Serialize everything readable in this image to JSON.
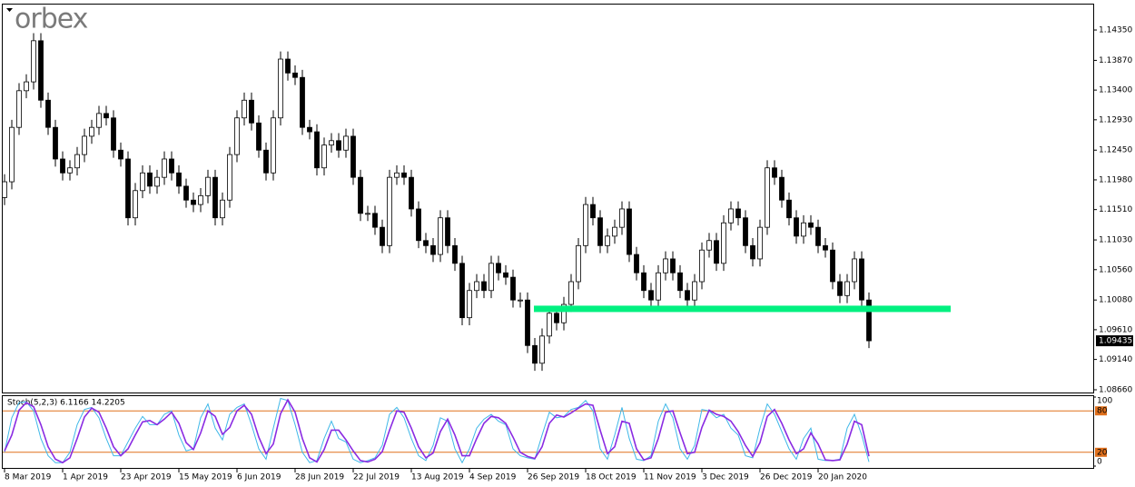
{
  "logo": "orbex",
  "chart_data": [
    {
      "type": "candlestick",
      "categories": [
        "8 Mar 2019",
        null,
        null,
        null,
        null,
        null,
        null,
        null,
        "1 Apr 2019",
        null,
        null,
        null,
        null,
        null,
        null,
        null,
        "23 Apr 2019",
        null,
        null,
        null,
        null,
        null,
        null,
        null,
        "15 May 2019",
        null,
        null,
        null,
        null,
        null,
        null,
        null,
        "6 Jun 2019",
        null,
        null,
        null,
        null,
        null,
        null,
        null,
        "28 Jun 2019",
        null,
        null,
        null,
        null,
        null,
        null,
        null,
        "22 Jul 2019",
        null,
        null,
        null,
        null,
        null,
        null,
        null,
        "13 Aug 2019",
        null,
        null,
        null,
        null,
        null,
        null,
        null,
        "4 Sep 2019",
        null,
        null,
        null,
        null,
        null,
        null,
        null,
        "26 Sep 2019",
        null,
        null,
        null,
        null,
        null,
        null,
        null,
        "18 Oct 2019",
        null,
        null,
        null,
        null,
        null,
        null,
        null,
        "11 Nov 2019",
        null,
        null,
        null,
        null,
        null,
        null,
        null,
        "3 Dec 2019",
        null,
        null,
        null,
        null,
        null,
        null,
        null,
        "26 Dec 2019",
        null,
        null,
        null,
        null,
        null,
        null,
        null,
        "20 Jan 2020",
        null,
        null,
        null,
        null,
        null,
        null,
        null
      ],
      "open": [
        1.117,
        1.1195,
        1.1281,
        1.1339,
        1.1353,
        1.1418,
        1.1324,
        1.1281,
        1.1231,
        1.1209,
        1.1217,
        1.1238,
        1.1267,
        1.1281,
        1.1303,
        1.1296,
        1.1245,
        1.1231,
        1.1138,
        1.1181,
        1.1209,
        1.1188,
        1.1202,
        1.1231,
        1.1209,
        1.1188,
        1.1166,
        1.1159,
        1.1173,
        1.1202,
        1.1138,
        1.1166,
        1.1238,
        1.1296,
        1.1324,
        1.1288,
        1.1245,
        1.1209,
        1.1296,
        1.1389,
        1.1367,
        1.136,
        1.1281,
        1.1274,
        1.1217,
        1.1253,
        1.126,
        1.1245,
        1.1267,
        1.1202,
        1.1145,
        1.1145,
        1.1123,
        1.1094,
        1.1202,
        1.1209,
        1.1202,
        1.1152,
        1.1102,
        1.1094,
        1.108,
        1.1138,
        1.1094,
        1.1066,
        1.098,
        1.1023,
        1.1037,
        1.1023,
        1.1066,
        1.1051,
        1.1044,
        1.1008,
        1.1008,
        1.0936,
        1.0908,
        1.0951,
        1.0987,
        1.0972,
        1.1001,
        1.1037,
        1.1094,
        1.1159,
        1.1138,
        1.1094,
        1.1109,
        1.1123,
        1.1152,
        1.108,
        1.1051,
        1.1023,
        1.1008,
        1.1051,
        1.1073,
        1.1051,
        1.1023,
        1.1008,
        1.1037,
        1.1087,
        1.1102,
        1.1066,
        1.113,
        1.1152,
        1.1138,
        1.1094,
        1.1073,
        1.1123,
        1.1217,
        1.1202,
        1.1166,
        1.1138,
        1.1109,
        1.113,
        1.1123,
        1.1094,
        1.1087,
        1.1037,
        1.1015,
        1.1037,
        1.1073,
        1.1008
      ],
      "high": [
        1.1207,
        1.1293,
        1.1351,
        1.1365,
        1.143,
        1.143,
        1.1336,
        1.1293,
        1.1243,
        1.1229,
        1.125,
        1.1279,
        1.1293,
        1.1315,
        1.1315,
        1.1308,
        1.1257,
        1.1243,
        1.1193,
        1.1221,
        1.1221,
        1.1214,
        1.1243,
        1.1243,
        1.1221,
        1.12,
        1.1178,
        1.1185,
        1.1214,
        1.1214,
        1.1178,
        1.125,
        1.1308,
        1.1336,
        1.1336,
        1.13,
        1.1257,
        1.1308,
        1.1401,
        1.1401,
        1.1379,
        1.1372,
        1.1293,
        1.1286,
        1.1265,
        1.1272,
        1.1272,
        1.1279,
        1.1279,
        1.1214,
        1.1157,
        1.1157,
        1.1135,
        1.1214,
        1.1221,
        1.1221,
        1.1214,
        1.1164,
        1.1114,
        1.1106,
        1.115,
        1.115,
        1.1106,
        1.1078,
        1.1035,
        1.1049,
        1.1049,
        1.1078,
        1.1078,
        1.1063,
        1.1056,
        1.102,
        1.102,
        1.0948,
        1.0963,
        1.0999,
        1.0999,
        1.1013,
        1.1049,
        1.1106,
        1.1171,
        1.1171,
        1.115,
        1.1121,
        1.1135,
        1.1164,
        1.1164,
        1.1092,
        1.1063,
        1.1035,
        1.1063,
        1.1085,
        1.1085,
        1.1063,
        1.1035,
        1.1049,
        1.1099,
        1.1114,
        1.1114,
        1.1142,
        1.1164,
        1.1164,
        1.115,
        1.1106,
        1.1135,
        1.1229,
        1.1229,
        1.1214,
        1.1178,
        1.115,
        1.1142,
        1.1142,
        1.1135,
        1.1106,
        1.1099,
        1.1049,
        1.1049,
        1.1085,
        1.1085,
        1.102
      ],
      "low": [
        1.1158,
        1.1183,
        1.1269,
        1.1327,
        1.1341,
        1.1312,
        1.1269,
        1.1219,
        1.1197,
        1.1197,
        1.1205,
        1.1226,
        1.1255,
        1.1269,
        1.1284,
        1.1233,
        1.1219,
        1.1126,
        1.1126,
        1.1169,
        1.1176,
        1.1176,
        1.119,
        1.1197,
        1.1176,
        1.1154,
        1.1147,
        1.1147,
        1.1161,
        1.1126,
        1.1126,
        1.1154,
        1.1226,
        1.1284,
        1.1276,
        1.1233,
        1.1197,
        1.1197,
        1.1284,
        1.1355,
        1.1348,
        1.1269,
        1.1262,
        1.1205,
        1.1205,
        1.1241,
        1.1233,
        1.1233,
        1.119,
        1.1133,
        1.1133,
        1.1111,
        1.1082,
        1.1082,
        1.119,
        1.119,
        1.114,
        1.109,
        1.1082,
        1.1068,
        1.1068,
        1.1082,
        1.1054,
        1.0968,
        1.0968,
        1.1011,
        1.1011,
        1.1011,
        1.1039,
        1.1032,
        1.0996,
        1.0996,
        1.0924,
        1.0896,
        1.0896,
        1.0939,
        1.096,
        1.096,
        1.0989,
        1.1025,
        1.1082,
        1.1126,
        1.1082,
        1.1082,
        1.1097,
        1.1111,
        1.1068,
        1.1039,
        1.1011,
        1.0996,
        1.0996,
        1.1039,
        1.1039,
        1.1011,
        1.0996,
        1.0996,
        1.1025,
        1.1075,
        1.1054,
        1.1054,
        1.1118,
        1.1126,
        1.1082,
        1.1061,
        1.1061,
        1.1111,
        1.119,
        1.1154,
        1.1126,
        1.1097,
        1.1097,
        1.1111,
        1.1082,
        1.1075,
        1.1025,
        1.1003,
        1.1003,
        1.1025,
        1.0996,
        1.0932
      ],
      "close": [
        1.1195,
        1.1281,
        1.1339,
        1.1353,
        1.1418,
        1.1324,
        1.1281,
        1.1231,
        1.1209,
        1.1217,
        1.1238,
        1.1267,
        1.1281,
        1.1303,
        1.1296,
        1.1245,
        1.1231,
        1.1138,
        1.1181,
        1.1209,
        1.1188,
        1.1202,
        1.1231,
        1.1209,
        1.1188,
        1.1166,
        1.1159,
        1.1173,
        1.1202,
        1.1138,
        1.1166,
        1.1238,
        1.1296,
        1.1324,
        1.1288,
        1.1245,
        1.1209,
        1.1296,
        1.1389,
        1.1367,
        1.136,
        1.1281,
        1.1274,
        1.1217,
        1.1253,
        1.126,
        1.1245,
        1.1267,
        1.1202,
        1.1145,
        1.1145,
        1.1123,
        1.1094,
        1.1202,
        1.1209,
        1.1202,
        1.1152,
        1.1102,
        1.1094,
        1.108,
        1.1138,
        1.1094,
        1.1066,
        1.098,
        1.1023,
        1.1037,
        1.1023,
        1.1066,
        1.1051,
        1.1044,
        1.1008,
        1.1008,
        1.0936,
        1.0908,
        1.0951,
        1.0987,
        1.0972,
        1.1001,
        1.1037,
        1.1094,
        1.1159,
        1.1138,
        1.1094,
        1.1109,
        1.1123,
        1.1152,
        1.108,
        1.1051,
        1.1023,
        1.1008,
        1.1051,
        1.1073,
        1.1051,
        1.1023,
        1.1008,
        1.1037,
        1.1087,
        1.1102,
        1.1066,
        1.113,
        1.1152,
        1.1138,
        1.1094,
        1.1073,
        1.1123,
        1.1217,
        1.1202,
        1.1166,
        1.1138,
        1.1109,
        1.113,
        1.1123,
        1.1094,
        1.1087,
        1.1037,
        1.1015,
        1.1037,
        1.1073,
        1.1008,
        1.09435
      ],
      "up_color": "#ffffff",
      "down_color": "#000000",
      "ylim": [
        1.08617,
        1.14767
      ],
      "yticks": [
        {
          "value": 1.1435,
          "label": "1.14350"
        },
        {
          "value": 1.1387,
          "label": "1.13870"
        },
        {
          "value": 1.134,
          "label": "1.13400"
        },
        {
          "value": 1.1293,
          "label": "1.12930"
        },
        {
          "value": 1.1245,
          "label": "1.12450"
        },
        {
          "value": 1.1198,
          "label": "1.11980"
        },
        {
          "value": 1.1151,
          "label": "1.11510"
        },
        {
          "value": 1.1103,
          "label": "1.11030"
        },
        {
          "value": 1.1056,
          "label": "1.10560"
        },
        {
          "value": 1.1008,
          "label": "1.10080"
        },
        {
          "value": 1.0961,
          "label": "1.09610"
        },
        {
          "value": 1.0914,
          "label": "1.09140"
        },
        {
          "value": 1.0866,
          "label": "1.08660"
        }
      ],
      "current_price": 1.09435,
      "hline": 1.0994,
      "hline_color": "#00f080"
    },
    {
      "type": "stochastic",
      "title": "Stoch(5,2,3) 6.1166 14.2205",
      "series": [
        {
          "color": "#3fb8e8",
          "values": [
            20,
            70,
            92,
            93,
            80,
            40,
            15,
            5,
            5,
            20,
            60,
            82,
            85,
            70,
            40,
            15,
            15,
            35,
            55,
            72,
            60,
            60,
            75,
            80,
            45,
            22,
            25,
            70,
            90,
            55,
            38,
            75,
            85,
            90,
            60,
            25,
            10,
            55,
            98,
            95,
            60,
            20,
            5,
            8,
            40,
            65,
            40,
            35,
            10,
            5,
            8,
            12,
            30,
            75,
            85,
            70,
            40,
            15,
            8,
            30,
            70,
            65,
            25,
            5,
            25,
            55,
            68,
            75,
            65,
            60,
            25,
            15,
            12,
            10,
            45,
            78,
            70,
            72,
            82,
            85,
            95,
            80,
            25,
            10,
            45,
            85,
            40,
            10,
            8,
            15,
            65,
            90,
            70,
            25,
            10,
            30,
            82,
            80,
            70,
            75,
            55,
            45,
            15,
            12,
            55,
            90,
            75,
            50,
            25,
            10,
            40,
            55,
            10,
            8,
            8,
            10,
            55,
            75,
            45,
            6.1166
          ]
        },
        {
          "color": "#8a2be2",
          "values": [
            22,
            45,
            81,
            92,
            86,
            60,
            28,
            10,
            5,
            12,
            40,
            71,
            84,
            78,
            55,
            28,
            15,
            25,
            45,
            64,
            66,
            60,
            68,
            78,
            62,
            34,
            24,
            48,
            80,
            72,
            46,
            56,
            80,
            88,
            75,
            42,
            18,
            32,
            76,
            96,
            78,
            40,
            12,
            6,
            24,
            52,
            52,
            38,
            22,
            8,
            6,
            10,
            21,
            52,
            80,
            78,
            55,
            28,
            12,
            19,
            50,
            68,
            45,
            15,
            15,
            40,
            62,
            72,
            70,
            62,
            42,
            20,
            14,
            11,
            28,
            62,
            74,
            71,
            77,
            84,
            90,
            88,
            52,
            18,
            28,
            65,
            62,
            25,
            9,
            12,
            40,
            78,
            80,
            48,
            18,
            20,
            56,
            81,
            75,
            72,
            65,
            50,
            30,
            14,
            34,
            72,
            82,
            62,
            38,
            18,
            25,
            48,
            32,
            9,
            8,
            9,
            32,
            65,
            60,
            14.2205
          ]
        }
      ],
      "levels": [
        80,
        20
      ],
      "level_color": "#e0701c",
      "ylim": [
        0,
        100
      ],
      "yticks": [
        100,
        80,
        20,
        0
      ]
    }
  ]
}
